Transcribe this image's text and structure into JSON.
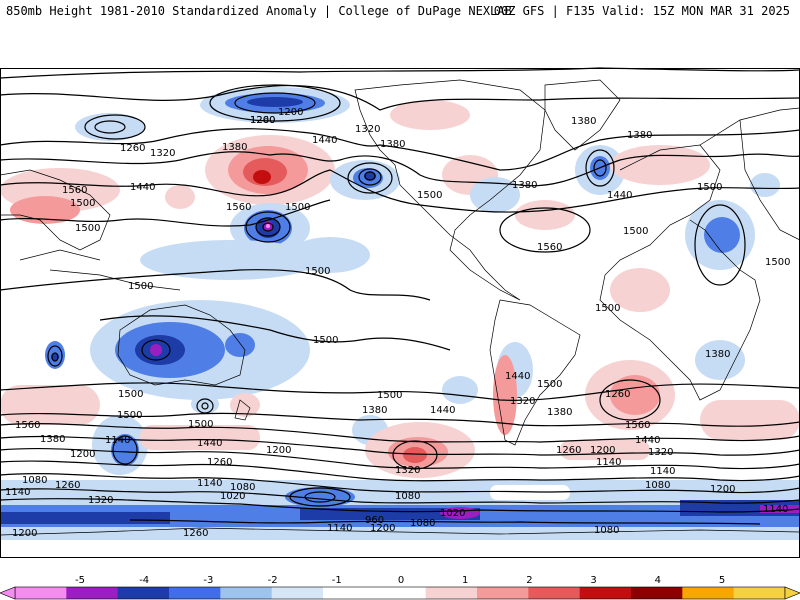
{
  "header": {
    "title_left": "850mb Height 1981-2010 Standardized Anomaly | College of DuPage NEXLAB",
    "title_right": "00Z GFS | F135 Valid: 15Z MON MAR 31 2025"
  },
  "colorbar": {
    "ticks": [
      "-5",
      "-4",
      "-3",
      "-2",
      "-1",
      "0",
      "1",
      "2",
      "3",
      "4",
      "5"
    ],
    "colors": [
      "#f58cf0",
      "#9b1fc0",
      "#1e3ca8",
      "#3f6ee6",
      "#9fc3ef",
      "#d6e6f7",
      "#ffffff",
      "#ffffff",
      "#f7d2d2",
      "#f59a9a",
      "#e55a5a",
      "#c20e0e",
      "#8b0000",
      "#f5a800",
      "#f5d040"
    ]
  },
  "map": {
    "contour_labels": [
      {
        "id": "c1",
        "text": "1200"
      },
      {
        "id": "c2",
        "text": "1260"
      },
      {
        "id": "c3",
        "text": "1320"
      },
      {
        "id": "c4",
        "text": "1380"
      },
      {
        "id": "c5",
        "text": "1440"
      },
      {
        "id": "c6",
        "text": "1560"
      },
      {
        "id": "c7",
        "text": "1500"
      },
      {
        "id": "c8",
        "text": "1260"
      },
      {
        "id": "c9",
        "text": "1320"
      },
      {
        "id": "c10",
        "text": "1440"
      },
      {
        "id": "c11",
        "text": "1380"
      },
      {
        "id": "c12",
        "text": "1500"
      },
      {
        "id": "c13",
        "text": "1560"
      },
      {
        "id": "c14",
        "text": "1500"
      },
      {
        "id": "c15",
        "text": "1500"
      },
      {
        "id": "c16",
        "text": "1380"
      },
      {
        "id": "c17",
        "text": "1380"
      },
      {
        "id": "c18",
        "text": "1380"
      },
      {
        "id": "c19",
        "text": "1440"
      },
      {
        "id": "c20",
        "text": "1500"
      },
      {
        "id": "c21",
        "text": "1500"
      },
      {
        "id": "c22",
        "text": "1500"
      },
      {
        "id": "c23",
        "text": "1560"
      },
      {
        "id": "c24",
        "text": "1500"
      },
      {
        "id": "c25",
        "text": "1500"
      },
      {
        "id": "c26",
        "text": "1500"
      },
      {
        "id": "c27",
        "text": "1500"
      },
      {
        "id": "c28",
        "text": "1500"
      },
      {
        "id": "c29",
        "text": "1500"
      },
      {
        "id": "c30",
        "text": "1560"
      },
      {
        "id": "c31",
        "text": "1380"
      },
      {
        "id": "c32",
        "text": "1140"
      },
      {
        "id": "c33",
        "text": "1200"
      },
      {
        "id": "c34",
        "text": "1080"
      },
      {
        "id": "c35",
        "text": "1260"
      },
      {
        "id": "c36",
        "text": "1140"
      },
      {
        "id": "c37",
        "text": "1320"
      },
      {
        "id": "c38",
        "text": "1200"
      },
      {
        "id": "c39",
        "text": "1500"
      },
      {
        "id": "c40",
        "text": "1440"
      },
      {
        "id": "c41",
        "text": "1260"
      },
      {
        "id": "c42",
        "text": "1200"
      },
      {
        "id": "c43",
        "text": "1140"
      },
      {
        "id": "c44",
        "text": "1020"
      },
      {
        "id": "c45",
        "text": "1080"
      },
      {
        "id": "c46",
        "text": "1380"
      },
      {
        "id": "c47",
        "text": "1440"
      },
      {
        "id": "c48",
        "text": "1500"
      },
      {
        "id": "c49",
        "text": "1320"
      },
      {
        "id": "c50",
        "text": "1080"
      },
      {
        "id": "c51",
        "text": "1020"
      },
      {
        "id": "c52",
        "text": "960"
      },
      {
        "id": "c53",
        "text": "1080"
      },
      {
        "id": "c54",
        "text": "1140"
      },
      {
        "id": "c55",
        "text": "1200"
      },
      {
        "id": "c56",
        "text": "1260"
      },
      {
        "id": "c57",
        "text": "1500"
      },
      {
        "id": "c58",
        "text": "1440"
      },
      {
        "id": "c59",
        "text": "1380"
      },
      {
        "id": "c60",
        "text": "1320"
      },
      {
        "id": "c61",
        "text": "1260"
      },
      {
        "id": "c62",
        "text": "1200"
      },
      {
        "id": "c63",
        "text": "1140"
      },
      {
        "id": "c64",
        "text": "1080"
      },
      {
        "id": "c65",
        "text": "1560"
      },
      {
        "id": "c66",
        "text": "1440"
      },
      {
        "id": "c67",
        "text": "1320"
      },
      {
        "id": "c68",
        "text": "1200"
      },
      {
        "id": "c69",
        "text": "1140"
      },
      {
        "id": "c70",
        "text": "1260"
      },
      {
        "id": "c71",
        "text": "1380"
      },
      {
        "id": "c72",
        "text": "1080"
      },
      {
        "id": "c73",
        "text": "1140"
      },
      {
        "id": "c74",
        "text": "1200"
      }
    ]
  }
}
